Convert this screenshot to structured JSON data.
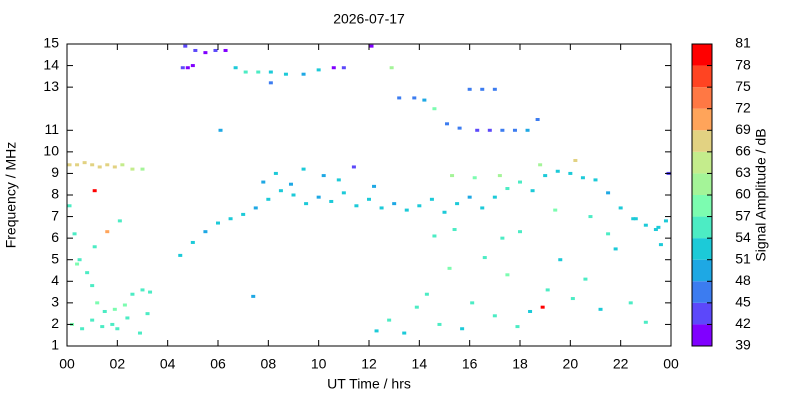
{
  "chart_data": {
    "type": "scatter",
    "title": "2026-07-17",
    "x_label": "UT Time / hrs",
    "y_label": "Frequency / MHz",
    "xlim": [
      0,
      24
    ],
    "ylim": [
      1,
      15
    ],
    "xticks": [
      {
        "value": 0,
        "label": "00"
      },
      {
        "value": 2,
        "label": "02"
      },
      {
        "value": 4,
        "label": "04"
      },
      {
        "value": 6,
        "label": "06"
      },
      {
        "value": 8,
        "label": "08"
      },
      10,
      12,
      14,
      16,
      18,
      20,
      22,
      {
        "value": 24,
        "label": "00"
      }
    ],
    "yticks": [
      1,
      2,
      3,
      4,
      5,
      6,
      7,
      8,
      9,
      10,
      11,
      13,
      14,
      15
    ],
    "x": [
      4.5,
      5,
      5.5,
      6,
      6.5,
      7,
      7.5,
      8,
      8.5,
      9,
      9.5,
      10,
      10.5,
      11,
      11.5,
      12,
      12.5,
      13,
      13.5,
      14,
      14.5,
      15,
      15.5,
      16,
      16.5,
      17,
      17.5,
      18,
      18.5,
      19,
      19.5,
      20,
      20.5,
      21,
      21.5,
      22,
      22.5,
      23,
      23.5,
      23.8,
      7.8,
      8.3,
      8.9,
      9.4,
      10.2,
      10.8,
      11.4,
      12.2,
      15.3,
      16.2,
      17.2,
      18.8,
      0.1,
      0.3,
      0.5,
      0.8,
      1.0,
      1.2,
      1.5,
      1.8,
      2.0,
      2.3,
      2.6,
      3.0,
      3.3,
      0.2,
      0.6,
      1.0,
      1.4,
      1.9,
      2.4,
      2.9,
      3.2,
      0.4,
      1.1,
      2.1,
      0.1,
      0.4,
      0.7,
      1.0,
      1.3,
      1.6,
      1.9,
      2.2,
      2.6,
      3.0,
      1.1,
      18.9,
      20.2,
      1.6,
      4.6,
      4.8,
      5.1,
      5.5,
      5.9,
      6.3,
      6.7,
      7.1,
      7.6,
      8.1,
      8.7,
      9.4,
      10.0,
      10.6,
      11.0,
      4.7,
      5.0,
      6.1,
      8.1,
      12.1,
      12.3,
      12.8,
      13.4,
      13.9,
      14.3,
      14.8,
      15.2,
      15.7,
      16.1,
      16.6,
      17.0,
      17.5,
      17.9,
      18.4,
      19.1,
      19.6,
      20.1,
      20.6,
      21.2,
      21.8,
      22.4,
      23.0,
      23.6,
      18.0,
      15.1,
      15.6,
      16.3,
      16.8,
      17.3,
      17.8,
      18.3,
      18.7,
      13.2,
      13.8,
      14.2,
      16.0,
      16.5,
      17.0,
      12.9,
      14.6,
      7.4,
      14.6,
      15.4,
      17.3,
      19.4,
      20.8,
      21.5,
      22.6,
      23.4,
      23.9
    ],
    "y": [
      5.2,
      5.8,
      6.3,
      6.7,
      6.9,
      7.1,
      7.4,
      7.8,
      8.2,
      8.0,
      7.6,
      7.9,
      7.7,
      8.1,
      7.5,
      7.8,
      7.4,
      7.6,
      7.3,
      7.5,
      7.8,
      7.2,
      7.6,
      7.9,
      7.4,
      7.9,
      8.3,
      8.6,
      8.2,
      8.9,
      9.1,
      9.0,
      8.8,
      8.7,
      8.1,
      7.4,
      6.9,
      6.6,
      6.5,
      6.8,
      8.6,
      9.0,
      8.5,
      9.2,
      8.9,
      8.7,
      9.3,
      8.4,
      8.9,
      8.8,
      8.9,
      9.4,
      7.5,
      6.2,
      5.0,
      4.4,
      3.8,
      3.0,
      2.6,
      2.0,
      1.8,
      2.9,
      3.4,
      3.6,
      3.5,
      2.0,
      1.8,
      2.2,
      1.9,
      2.7,
      2.3,
      1.6,
      2.5,
      4.8,
      5.6,
      6.8,
      9.4,
      9.4,
      9.5,
      9.4,
      9.3,
      9.4,
      9.3,
      9.4,
      9.2,
      9.2,
      8.2,
      2.8,
      9.6,
      6.3,
      13.9,
      13.9,
      14.7,
      14.6,
      14.7,
      14.7,
      13.9,
      13.7,
      13.7,
      13.7,
      13.6,
      13.6,
      13.8,
      13.9,
      13.9,
      14.9,
      14.0,
      11.0,
      13.2,
      14.9,
      1.7,
      2.2,
      1.6,
      2.8,
      3.4,
      2.0,
      4.6,
      1.8,
      3.0,
      5.1,
      2.4,
      4.3,
      1.9,
      2.6,
      3.6,
      5.0,
      3.2,
      4.1,
      2.7,
      5.5,
      3.0,
      2.1,
      5.7,
      6.3,
      11.3,
      11.1,
      11.0,
      11.0,
      11.0,
      11.0,
      11.0,
      11.5,
      12.5,
      12.5,
      12.4,
      12.9,
      12.9,
      12.9,
      13.9,
      12.0,
      3.3,
      6.1,
      6.4,
      6.0,
      7.3,
      7.0,
      6.2,
      6.9,
      6.4,
      9.0
    ],
    "values": [
      51,
      52,
      50,
      53,
      51,
      52,
      50,
      51,
      53,
      52,
      51,
      50,
      52,
      51,
      53,
      52,
      51,
      50,
      52,
      51,
      53,
      52,
      51,
      50,
      52,
      51,
      55,
      56,
      53,
      52,
      51,
      52,
      53,
      51,
      50,
      52,
      51,
      53,
      52,
      51,
      50,
      51,
      49,
      52,
      50,
      51,
      42,
      49,
      60,
      58,
      61,
      62,
      55,
      54,
      56,
      55,
      54,
      57,
      55,
      56,
      54,
      57,
      55,
      56,
      55,
      57,
      55,
      56,
      55,
      58,
      56,
      55,
      54,
      57,
      56,
      55,
      67,
      68,
      66,
      67,
      68,
      67,
      66,
      64,
      63,
      62,
      79,
      80,
      68,
      70,
      42,
      41,
      43,
      41,
      42,
      40,
      52,
      54,
      55,
      53,
      51,
      50,
      52,
      41,
      42,
      42,
      40,
      48,
      47,
      40,
      53,
      54,
      52,
      55,
      56,
      54,
      57,
      53,
      56,
      55,
      54,
      58,
      55,
      53,
      54,
      52,
      55,
      54,
      53,
      52,
      54,
      56,
      53,
      55,
      46,
      45,
      44,
      43,
      46,
      47,
      48,
      47,
      46,
      45,
      48,
      46,
      47,
      45,
      62,
      58,
      50,
      55,
      54,
      56,
      57,
      55,
      54,
      53,
      52,
      42
    ],
    "colorbar": {
      "label": "Signal Amplitude / dB",
      "lim": [
        39,
        81
      ],
      "ticks": [
        39,
        42,
        45,
        48,
        51,
        54,
        57,
        60,
        63,
        66,
        69,
        72,
        75,
        78,
        81
      ],
      "colors": [
        "#8000ff",
        "#5c48fa",
        "#3c7cf0",
        "#1ea8e4",
        "#1ccad8",
        "#4cecc4",
        "#7cfcb0",
        "#a4f498",
        "#c4ec8c",
        "#e2d282",
        "#ffa45a",
        "#ff7844",
        "#ff4422",
        "#ff0000"
      ]
    }
  }
}
